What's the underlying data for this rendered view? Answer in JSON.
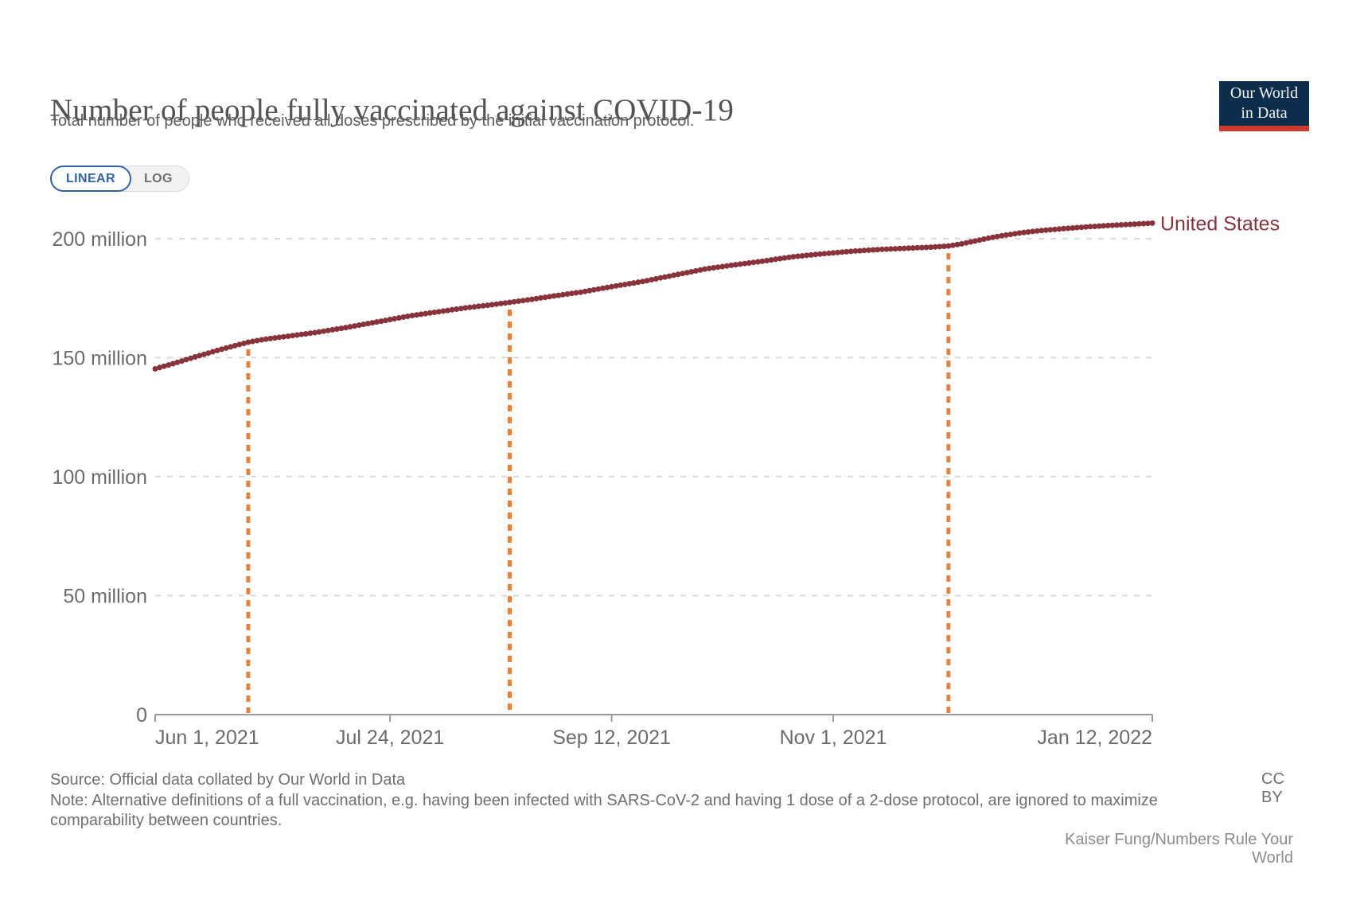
{
  "header": {
    "title": "Number of people fully vaccinated against COVID-19",
    "subtitle": "Total number of people who received all doses prescribed by the initial vaccination protocol.",
    "logo": {
      "line1": "Our World",
      "line2": "in Data",
      "bg_color": "#0d2d4d",
      "stripe_color": "#cf3a30"
    }
  },
  "controls": {
    "linear_label": "LINEAR",
    "log_label": "LOG",
    "active": "LINEAR",
    "accent_color": "#2e62b0"
  },
  "chart_data": {
    "type": "scatter",
    "title": "Number of people fully vaccinated against COVID-19",
    "series": [
      {
        "name": "United States",
        "color": "#88333C",
        "x_unit": "days since Jun 1, 2021",
        "y_unit": "million people",
        "points_day_value": [
          [
            0,
            145.3
          ],
          [
            5,
            148.0
          ],
          [
            9,
            150.3
          ],
          [
            14,
            153.0
          ],
          [
            18,
            155.0
          ],
          [
            21,
            156.5
          ],
          [
            25,
            157.8
          ],
          [
            30,
            159.0
          ],
          [
            36,
            160.5
          ],
          [
            42,
            162.3
          ],
          [
            48,
            164.3
          ],
          [
            53,
            166.0
          ],
          [
            58,
            167.7
          ],
          [
            64,
            169.3
          ],
          [
            70,
            170.9
          ],
          [
            75,
            172.0
          ],
          [
            80,
            173.2
          ],
          [
            85,
            174.5
          ],
          [
            90,
            175.9
          ],
          [
            96,
            177.5
          ],
          [
            103,
            179.8
          ],
          [
            110,
            182.0
          ],
          [
            117,
            184.6
          ],
          [
            124,
            187.2
          ],
          [
            130,
            188.8
          ],
          [
            137,
            190.5
          ],
          [
            144,
            192.4
          ],
          [
            150,
            193.5
          ],
          [
            153,
            194.0
          ],
          [
            158,
            194.8
          ],
          [
            164,
            195.5
          ],
          [
            170,
            196.0
          ],
          [
            175,
            196.4
          ],
          [
            179,
            196.9
          ],
          [
            182,
            197.8
          ],
          [
            185,
            199.0
          ],
          [
            188,
            200.2
          ],
          [
            192,
            201.5
          ],
          [
            196,
            202.6
          ],
          [
            200,
            203.4
          ],
          [
            205,
            204.2
          ],
          [
            210,
            204.9
          ],
          [
            215,
            205.5
          ],
          [
            220,
            206.0
          ],
          [
            225,
            206.5
          ]
        ],
        "interpolate_daily": true
      }
    ],
    "x_ticks": [
      {
        "day": 0,
        "label": "Jun 1, 2021",
        "align": "start"
      },
      {
        "day": 53,
        "label": "Jul 24, 2021",
        "align": "middle"
      },
      {
        "day": 103,
        "label": "Sep 12, 2021",
        "align": "middle"
      },
      {
        "day": 153,
        "label": "Nov 1, 2021",
        "align": "middle"
      },
      {
        "day": 225,
        "label": "Jan 12, 2022",
        "align": "end"
      }
    ],
    "y_ticks": [
      {
        "value": 0,
        "label": "0"
      },
      {
        "value": 50,
        "label": "50 million"
      },
      {
        "value": 100,
        "label": "100 million"
      },
      {
        "value": 150,
        "label": "150 million"
      },
      {
        "value": 200,
        "label": "200 million"
      }
    ],
    "ylim": [
      0,
      215
    ],
    "xlim_days": [
      0,
      225
    ],
    "grid": "dashed horizontal",
    "grid_color": "#dadada",
    "axis_color": "#9a9a9a",
    "tick_label_color": "#6b6b6b",
    "marker_lines": {
      "days": [
        21,
        80,
        179
      ],
      "color": "#E8813C",
      "style": "dashed vertical"
    },
    "end_label": "United States",
    "legend_position": "right of last point"
  },
  "footer": {
    "source": "Source: Official data collated by Our World in Data",
    "note": "Note: Alternative definitions of a full vaccination, e.g. having been infected with SARS-CoV-2 and having 1 dose of a 2-dose protocol, are ignored to maximize comparability between countries.",
    "license": "CC BY",
    "attribution": "Kaiser Fung/Numbers Rule Your World"
  }
}
